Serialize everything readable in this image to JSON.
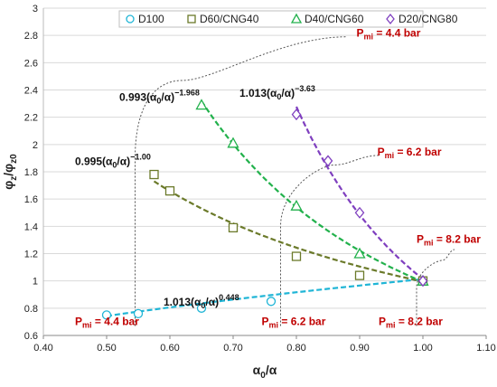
{
  "chart_data": {
    "type": "scatter",
    "xlabel": "α₀/α",
    "ylabel": "φz/φz0",
    "xlim": [
      0.4,
      1.1
    ],
    "ylim": [
      0.6,
      3.0
    ],
    "x_ticks": [
      "0.40",
      "0.50",
      "0.60",
      "0.70",
      "0.80",
      "0.90",
      "1.00",
      "1.10"
    ],
    "y_ticks": [
      "0.6",
      "0.8",
      "1",
      "1.2",
      "1.4",
      "1.6",
      "1.8",
      "2",
      "2.2",
      "2.4",
      "2.6",
      "2.8",
      "3"
    ],
    "grid": "horizontal",
    "legend_position": "top",
    "series": [
      {
        "name": "D100",
        "marker": "circle",
        "color": "#1fb5d6",
        "points": [
          [
            0.5,
            0.75
          ],
          [
            0.55,
            0.76
          ],
          [
            0.65,
            0.8
          ],
          [
            0.76,
            0.85
          ],
          [
            1.0,
            1.0
          ]
        ],
        "fit": {
          "a": 1.013,
          "b": 0.448,
          "from": 0.5,
          "to": 1.0
        },
        "equation": {
          "coef": "1.013",
          "exp": "0.448",
          "text_x": 0.59,
          "text_y": 0.82
        }
      },
      {
        "name": "D60/CNG40",
        "marker": "square",
        "color": "#6b7a2a",
        "points": [
          [
            0.575,
            1.78
          ],
          [
            0.6,
            1.66
          ],
          [
            0.7,
            1.39
          ],
          [
            0.8,
            1.18
          ],
          [
            0.9,
            1.04
          ],
          [
            1.0,
            1.0
          ]
        ],
        "fit": {
          "a": 0.995,
          "b": -1.0,
          "from": 0.575,
          "to": 1.0
        },
        "equation": {
          "coef": "0.995",
          "exp": "−1.00",
          "text_x": 0.45,
          "text_y": 1.85
        }
      },
      {
        "name": "D40/CNG60",
        "marker": "triangle",
        "color": "#22b14c",
        "points": [
          [
            0.65,
            2.29
          ],
          [
            0.7,
            2.01
          ],
          [
            0.8,
            1.55
          ],
          [
            0.9,
            1.2
          ],
          [
            1.0,
            1.0
          ]
        ],
        "fit": {
          "a": 0.993,
          "b": -1.968,
          "from": 0.65,
          "to": 1.0
        },
        "equation": {
          "coef": "0.993",
          "exp": "−1.968",
          "text_x": 0.52,
          "text_y": 2.32
        }
      },
      {
        "name": "D20/CNG80",
        "marker": "diamond",
        "color": "#7f3fbf",
        "points": [
          [
            0.8,
            2.22
          ],
          [
            0.85,
            1.88
          ],
          [
            0.9,
            1.5
          ],
          [
            1.0,
            1.0
          ]
        ],
        "fit": {
          "a": 1.013,
          "b": -3.63,
          "from": 0.8,
          "to": 1.0
        },
        "equation": {
          "coef": "1.013",
          "exp": "−3.63",
          "text_x": 0.71,
          "text_y": 2.35
        }
      }
    ],
    "annotations": [
      {
        "text": "Pmi = 4.4 bar",
        "base": "P",
        "sub": "mi",
        "rest": " = 4.4 bar",
        "x": 0.895,
        "y": 2.79
      },
      {
        "text": "Pmi = 6.2 bar",
        "base": "P",
        "sub": "mi",
        "rest": " = 6.2 bar",
        "x": 0.928,
        "y": 1.92
      },
      {
        "text": "Pmi = 8.2 bar",
        "base": "P",
        "sub": "mi",
        "rest": " = 8.2 bar",
        "x": 0.99,
        "y": 1.28
      },
      {
        "text": "Pmi = 4.4 bar",
        "base": "P",
        "sub": "mi",
        "rest": " = 4.4 bar",
        "x": 0.45,
        "y": 0.675
      },
      {
        "text": "Pmi = 6.2 bar",
        "base": "P",
        "sub": "mi",
        "rest": " = 6.2 bar",
        "x": 0.745,
        "y": 0.675
      },
      {
        "text": "Pmi = 8.2 bar",
        "base": "P",
        "sub": "mi",
        "rest": " = 8.2 bar",
        "x": 0.93,
        "y": 0.675
      }
    ],
    "guide_curves": [
      {
        "points": [
          [
            0.545,
            0.67
          ],
          [
            0.545,
            1.9
          ],
          [
            0.62,
            2.47
          ],
          [
            0.88,
            2.79
          ]
        ]
      },
      {
        "points": [
          [
            0.775,
            0.67
          ],
          [
            0.775,
            1.4
          ],
          [
            0.86,
            1.85
          ],
          [
            0.93,
            1.92
          ]
        ]
      },
      {
        "points": [
          [
            0.99,
            0.67
          ],
          [
            0.99,
            0.95
          ],
          [
            1.03,
            1.15
          ],
          [
            1.05,
            1.23
          ]
        ]
      }
    ]
  }
}
